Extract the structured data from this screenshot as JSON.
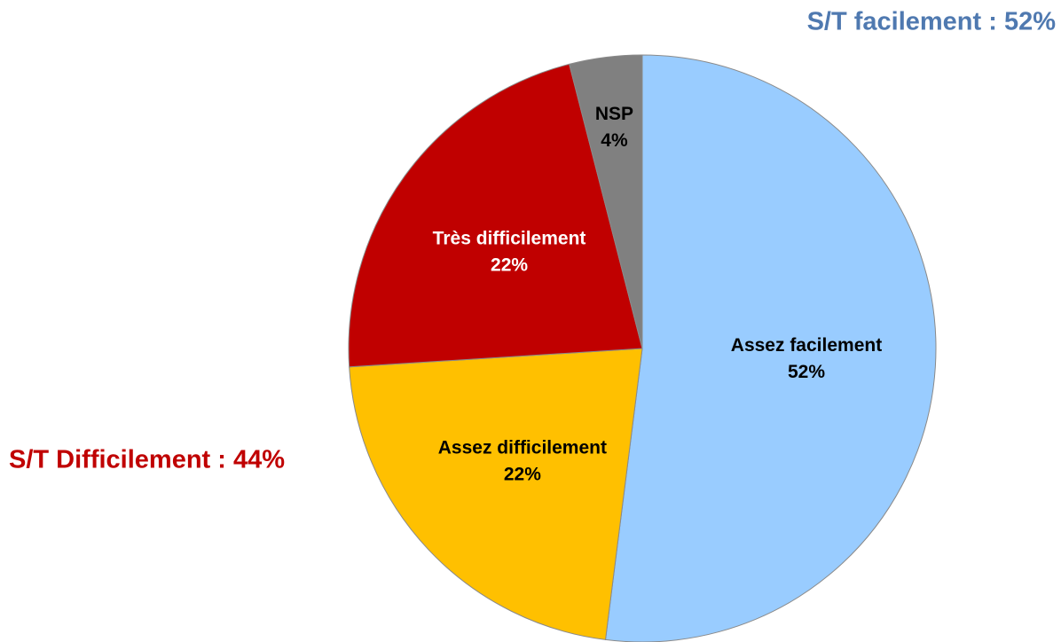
{
  "chart_data": {
    "type": "pie",
    "categories": [
      "Assez facilement",
      "Assez difficilement",
      "Très difficilement",
      "NSP"
    ],
    "values": [
      52,
      22,
      22,
      4
    ],
    "value_labels": [
      "52%",
      "22%",
      "22%",
      "4%"
    ],
    "colors": [
      "#99ccff",
      "#ffc000",
      "#c00000",
      "#808080"
    ],
    "label_colors": [
      "#000000",
      "#000000",
      "#ffffff",
      "#000000"
    ],
    "annotations": [
      {
        "text": "S/T facilement : 52%",
        "color": "#4f79b0"
      },
      {
        "text": "S/T Difficilement : 44%",
        "color": "#c00000"
      }
    ]
  }
}
